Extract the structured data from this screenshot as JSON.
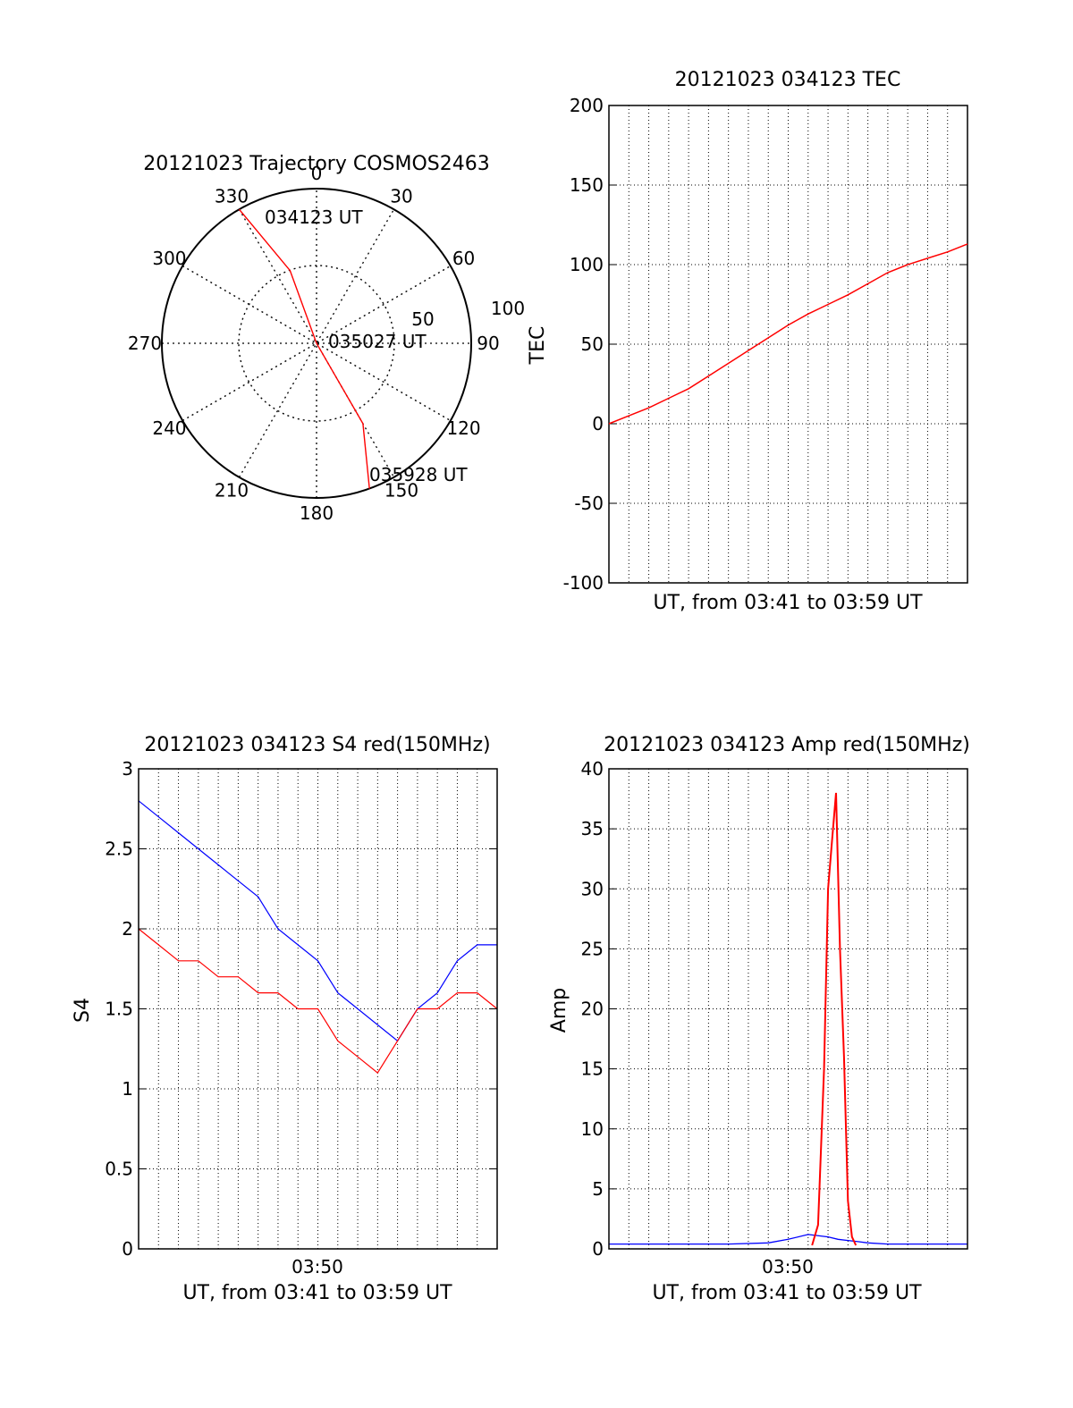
{
  "chart_data": [
    {
      "type": "polar",
      "title": "20121023 Trajectory COSMOS2463",
      "azimuth_labels": [
        "0",
        "30",
        "60",
        "90",
        "120",
        "150",
        "180",
        "210",
        "240",
        "270",
        "300",
        "330"
      ],
      "radial_labels": [
        "50",
        "100"
      ],
      "track_color": "#ff0000",
      "track": [
        {
          "az": 330,
          "r": 100,
          "label": "034123 UT"
        },
        {
          "az": 340,
          "r": 50
        },
        {
          "az": 0,
          "r": 0,
          "label": "035027 UT"
        },
        {
          "az": 150,
          "r": 60
        },
        {
          "az": 160,
          "r": 100,
          "label": "035928 UT"
        }
      ]
    },
    {
      "type": "line",
      "title": "20121023 034123 TEC",
      "xlabel": "UT, from 03:41 to 03:59 UT",
      "ylabel": "TEC",
      "ylim": [
        -100,
        200
      ],
      "yticks": [
        "-100",
        "-50",
        "0",
        "50",
        "100",
        "150",
        "200"
      ],
      "xlim_min": [
        0,
        18
      ],
      "grid": true,
      "series": [
        {
          "color": "#ff0000",
          "x": [
            0,
            1,
            2,
            3,
            4,
            5,
            6,
            7,
            8,
            9,
            10,
            11,
            12,
            13,
            14,
            15,
            16,
            17,
            18
          ],
          "y": [
            0,
            5,
            10,
            16,
            22,
            30,
            38,
            46,
            54,
            62,
            69,
            75,
            81,
            88,
            95,
            100,
            104,
            108,
            113
          ]
        }
      ]
    },
    {
      "type": "line",
      "title": "20121023 034123 S4 red(150MHz)",
      "xlabel": "UT, from 03:41 to 03:59 UT",
      "xticklabel": "03:50",
      "ylabel": "S4",
      "ylim": [
        0,
        3
      ],
      "yticks": [
        "0",
        "0.5",
        "1",
        "1.5",
        "2",
        "2.5",
        "3"
      ],
      "xlim_min": [
        0,
        18
      ],
      "grid": true,
      "series": [
        {
          "color": "#0000ff",
          "x": [
            0,
            1,
            2,
            3,
            4,
            5,
            6,
            7,
            8,
            9,
            10,
            11,
            12,
            13,
            14,
            15,
            16,
            17,
            18
          ],
          "y": [
            2.8,
            2.7,
            2.6,
            2.5,
            2.4,
            2.3,
            2.2,
            2.0,
            1.9,
            1.8,
            1.6,
            1.5,
            1.4,
            1.3,
            1.5,
            1.6,
            1.8,
            1.9,
            1.9
          ]
        },
        {
          "color": "#ff0000",
          "x": [
            0,
            1,
            2,
            3,
            4,
            5,
            6,
            7,
            8,
            9,
            10,
            11,
            12,
            13,
            14,
            15,
            16,
            17,
            18
          ],
          "y": [
            2.0,
            1.9,
            1.8,
            1.8,
            1.7,
            1.7,
            1.6,
            1.6,
            1.5,
            1.5,
            1.3,
            1.2,
            1.1,
            1.3,
            1.5,
            1.5,
            1.6,
            1.6,
            1.5
          ]
        }
      ]
    },
    {
      "type": "line",
      "title": "20121023 034123 Amp red(150MHz)",
      "xlabel": "UT, from 03:41 to 03:59 UT",
      "xticklabel": "03:50",
      "ylabel": "Amp",
      "ylim": [
        0,
        40
      ],
      "yticks": [
        "0",
        "5",
        "10",
        "15",
        "20",
        "25",
        "30",
        "35",
        "40"
      ],
      "xlim_min": [
        0,
        18
      ],
      "grid": true,
      "series": [
        {
          "color": "#0000ff",
          "x": [
            0,
            2,
            4,
            6,
            8,
            9,
            10,
            11,
            11.5,
            12,
            12.5,
            13,
            14,
            16,
            18
          ],
          "y": [
            0.4,
            0.4,
            0.4,
            0.4,
            0.5,
            0.8,
            1.2,
            1.0,
            0.8,
            0.7,
            0.6,
            0.5,
            0.4,
            0.4,
            0.4
          ]
        },
        {
          "color": "#ff0000",
          "x": [
            10.2,
            10.5,
            10.8,
            11.0,
            11.2,
            11.4,
            11.6,
            11.8,
            12.0,
            12.2,
            12.4
          ],
          "y": [
            0.3,
            2,
            15,
            30,
            34,
            38,
            25,
            16,
            4,
            1,
            0.3
          ]
        }
      ]
    }
  ]
}
